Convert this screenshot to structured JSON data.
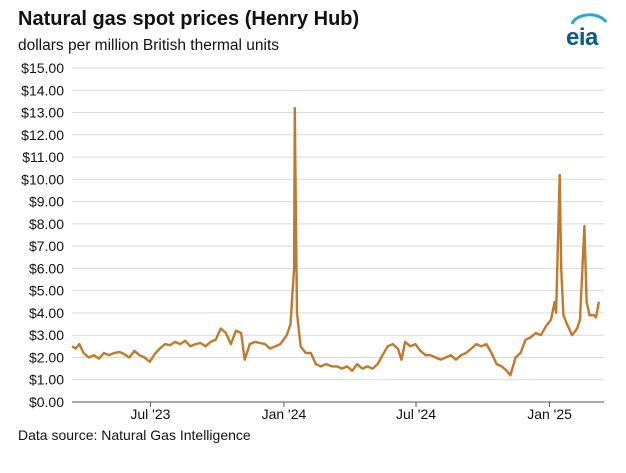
{
  "header": {
    "title": "Natural gas spot prices (Henry Hub)",
    "subtitle": "dollars per million British thermal units",
    "logo_text": "eia"
  },
  "footer": {
    "source": "Data source: Natural Gas Intelligence"
  },
  "colors": {
    "line": "#c07a2c",
    "grid": "#d9d9d9",
    "axis": "#555555",
    "logo_arc": "#2aa7d6",
    "logo_text": "#0b5c8a"
  },
  "chart_data": {
    "type": "line",
    "title": "Natural gas spot prices (Henry Hub)",
    "ylabel": "dollars per million British thermal units",
    "xlabel": "",
    "ylim": [
      0,
      15
    ],
    "xlim": [
      "2023-03-15",
      "2025-03-17"
    ],
    "y_ticks": [
      "$0.00",
      "$1.00",
      "$2.00",
      "$3.00",
      "$4.00",
      "$5.00",
      "$6.00",
      "$7.00",
      "$8.00",
      "$9.00",
      "$10.00",
      "$11.00",
      "$12.00",
      "$13.00",
      "$14.00",
      "$15.00"
    ],
    "x_ticks": [
      {
        "date": "2023-07-01",
        "label": "Jul '23"
      },
      {
        "date": "2024-01-01",
        "label": "Jan '24"
      },
      {
        "date": "2024-07-01",
        "label": "Jul '24"
      },
      {
        "date": "2025-01-01",
        "label": "Jan '25"
      }
    ],
    "grid": true,
    "legend": "none",
    "series": [
      {
        "values": [
          [
            "2023-03-15",
            2.5
          ],
          [
            "2023-03-20",
            2.4
          ],
          [
            "2023-03-25",
            2.6
          ],
          [
            "2023-03-31",
            2.2
          ],
          [
            "2023-04-07",
            2.0
          ],
          [
            "2023-04-14",
            2.1
          ],
          [
            "2023-04-21",
            1.95
          ],
          [
            "2023-04-28",
            2.2
          ],
          [
            "2023-05-05",
            2.1
          ],
          [
            "2023-05-12",
            2.2
          ],
          [
            "2023-05-19",
            2.25
          ],
          [
            "2023-05-26",
            2.15
          ],
          [
            "2023-06-02",
            2.0
          ],
          [
            "2023-06-09",
            2.3
          ],
          [
            "2023-06-16",
            2.1
          ],
          [
            "2023-06-23",
            2.0
          ],
          [
            "2023-06-30",
            1.8
          ],
          [
            "2023-07-07",
            2.15
          ],
          [
            "2023-07-14",
            2.4
          ],
          [
            "2023-07-21",
            2.6
          ],
          [
            "2023-07-28",
            2.55
          ],
          [
            "2023-08-04",
            2.7
          ],
          [
            "2023-08-11",
            2.6
          ],
          [
            "2023-08-18",
            2.75
          ],
          [
            "2023-08-25",
            2.5
          ],
          [
            "2023-09-01",
            2.6
          ],
          [
            "2023-09-08",
            2.65
          ],
          [
            "2023-09-15",
            2.5
          ],
          [
            "2023-09-22",
            2.7
          ],
          [
            "2023-09-29",
            2.8
          ],
          [
            "2023-10-06",
            3.3
          ],
          [
            "2023-10-13",
            3.1
          ],
          [
            "2023-10-20",
            2.6
          ],
          [
            "2023-10-27",
            3.2
          ],
          [
            "2023-11-03",
            3.1
          ],
          [
            "2023-11-08",
            1.9
          ],
          [
            "2023-11-15",
            2.6
          ],
          [
            "2023-11-22",
            2.7
          ],
          [
            "2023-11-29",
            2.65
          ],
          [
            "2023-12-06",
            2.6
          ],
          [
            "2023-12-13",
            2.4
          ],
          [
            "2023-12-20",
            2.5
          ],
          [
            "2023-12-27",
            2.6
          ],
          [
            "2024-01-05",
            3.0
          ],
          [
            "2024-01-10",
            3.5
          ],
          [
            "2024-01-15",
            6.0
          ],
          [
            "2024-01-16",
            13.2
          ],
          [
            "2024-01-17",
            10.0
          ],
          [
            "2024-01-19",
            4.0
          ],
          [
            "2024-01-24",
            2.5
          ],
          [
            "2024-01-31",
            2.2
          ],
          [
            "2024-02-07",
            2.2
          ],
          [
            "2024-02-14",
            1.7
          ],
          [
            "2024-02-21",
            1.6
          ],
          [
            "2024-02-28",
            1.7
          ],
          [
            "2024-03-07",
            1.6
          ],
          [
            "2024-03-14",
            1.6
          ],
          [
            "2024-03-21",
            1.5
          ],
          [
            "2024-03-28",
            1.6
          ],
          [
            "2024-04-04",
            1.4
          ],
          [
            "2024-04-11",
            1.7
          ],
          [
            "2024-04-18",
            1.5
          ],
          [
            "2024-04-25",
            1.6
          ],
          [
            "2024-05-02",
            1.5
          ],
          [
            "2024-05-09",
            1.7
          ],
          [
            "2024-05-16",
            2.1
          ],
          [
            "2024-05-23",
            2.5
          ],
          [
            "2024-05-30",
            2.6
          ],
          [
            "2024-06-06",
            2.4
          ],
          [
            "2024-06-11",
            1.9
          ],
          [
            "2024-06-16",
            2.7
          ],
          [
            "2024-06-23",
            2.5
          ],
          [
            "2024-06-30",
            2.6
          ],
          [
            "2024-07-07",
            2.3
          ],
          [
            "2024-07-14",
            2.1
          ],
          [
            "2024-07-21",
            2.1
          ],
          [
            "2024-07-28",
            2.0
          ],
          [
            "2024-08-04",
            1.9
          ],
          [
            "2024-08-11",
            2.0
          ],
          [
            "2024-08-18",
            2.1
          ],
          [
            "2024-08-25",
            1.9
          ],
          [
            "2024-09-01",
            2.1
          ],
          [
            "2024-09-08",
            2.2
          ],
          [
            "2024-09-15",
            2.4
          ],
          [
            "2024-09-22",
            2.6
          ],
          [
            "2024-09-29",
            2.5
          ],
          [
            "2024-10-06",
            2.6
          ],
          [
            "2024-10-13",
            2.2
          ],
          [
            "2024-10-20",
            1.7
          ],
          [
            "2024-10-27",
            1.6
          ],
          [
            "2024-11-03",
            1.4
          ],
          [
            "2024-11-08",
            1.2
          ],
          [
            "2024-11-15",
            2.0
          ],
          [
            "2024-11-22",
            2.2
          ],
          [
            "2024-11-29",
            2.8
          ],
          [
            "2024-12-06",
            2.9
          ],
          [
            "2024-12-13",
            3.1
          ],
          [
            "2024-12-20",
            3.0
          ],
          [
            "2024-12-27",
            3.4
          ],
          [
            "2025-01-03",
            3.7
          ],
          [
            "2025-01-08",
            4.5
          ],
          [
            "2025-01-10",
            4.0
          ],
          [
            "2025-01-14",
            9.0
          ],
          [
            "2025-01-15",
            10.2
          ],
          [
            "2025-01-17",
            6.0
          ],
          [
            "2025-01-20",
            3.9
          ],
          [
            "2025-01-25",
            3.5
          ],
          [
            "2025-02-01",
            3.0
          ],
          [
            "2025-02-08",
            3.3
          ],
          [
            "2025-02-12",
            3.7
          ],
          [
            "2025-02-18",
            7.9
          ],
          [
            "2025-02-21",
            4.5
          ],
          [
            "2025-02-25",
            3.9
          ],
          [
            "2025-03-03",
            3.9
          ],
          [
            "2025-03-06",
            3.8
          ],
          [
            "2025-03-10",
            4.5
          ]
        ]
      }
    ]
  }
}
